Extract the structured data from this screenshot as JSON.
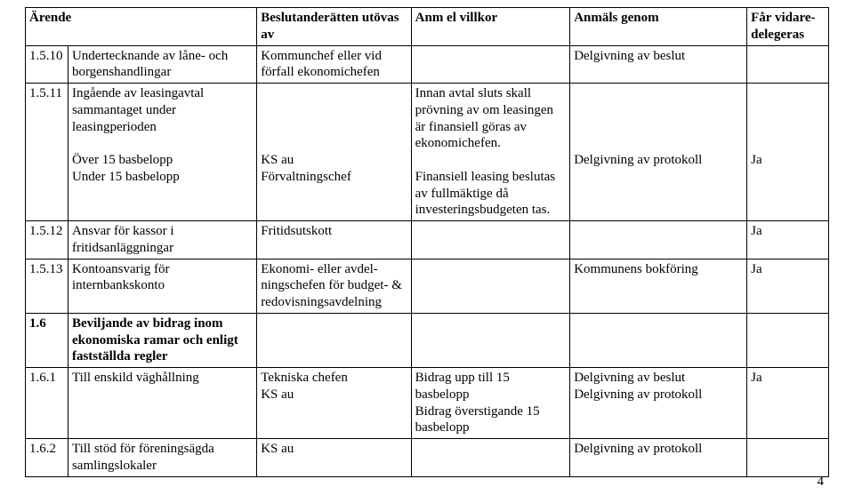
{
  "headers": {
    "col1": "Ärende",
    "col2": "",
    "col3": "Beslutanderätten utövas av",
    "col4": "Anm el villkor",
    "col5": "Anmäls genom",
    "col6": "Får vidare-delegeras"
  },
  "rows": {
    "r1": {
      "num": "1.5.10",
      "arende": "Undertecknande av låne- och borgenshandlingar",
      "beslut": "Kommunchef eller vid förfall ekonomichefen",
      "anm": "",
      "anmals": "Delgivning av beslut",
      "vidare": ""
    },
    "r2": {
      "num": "1.5.11",
      "arende_line1": "Ingående av leasingavtal sammantaget under leasingperioden",
      "arende_line2": "Över 15 basbelopp",
      "arende_line3": "Under 15 basbelopp",
      "beslut_line1": "KS au",
      "beslut_line2": "Förvaltningschef",
      "anm_line1": "Innan avtal sluts skall prövning av om leasingen är finansiell göras av ekonomichefen.",
      "anm_line2": "Finansiell leasing beslutas av fullmäktige då investeringsbudgeten tas.",
      "anmals": "Delgivning av protokoll",
      "vidare": "Ja"
    },
    "r3": {
      "num": "1.5.12",
      "arende": "Ansvar för kassor i fritidsanläggningar",
      "beslut": "Fritidsutskott",
      "anm": "",
      "anmals": "",
      "vidare": "Ja"
    },
    "r4": {
      "num": "1.5.13",
      "arende": "Kontoansvarig för internbankskonto",
      "beslut": "Ekonomi- eller avdel-ningschefen för budget- & redovisningsavdelning",
      "anm": "",
      "anmals": "Kommunens bokföring",
      "vidare": "Ja"
    },
    "r5": {
      "num": "1.6",
      "arende": "Beviljande av bidrag inom ekonomiska ramar och enligt fastställda regler",
      "beslut": "",
      "anm": "",
      "anmals": "",
      "vidare": ""
    },
    "r6": {
      "num": "1.6.1",
      "arende": "Till enskild väghållning",
      "beslut_line1": "Tekniska chefen",
      "beslut_line2": "KS au",
      "anm_line1": "Bidrag upp till 15 basbelopp",
      "anm_line2": "Bidrag överstigande 15 basbelopp",
      "anmals_line1": "Delgivning av beslut",
      "anmals_line2": "Delgivning av protokoll",
      "vidare": "Ja"
    },
    "r7": {
      "num": "1.6.2",
      "arende": "Till stöd för föreningsägda samlingslokaler",
      "beslut": "KS au",
      "anm": "",
      "anmals": "Delgivning av protokoll",
      "vidare": ""
    }
  },
  "page_number": "4"
}
